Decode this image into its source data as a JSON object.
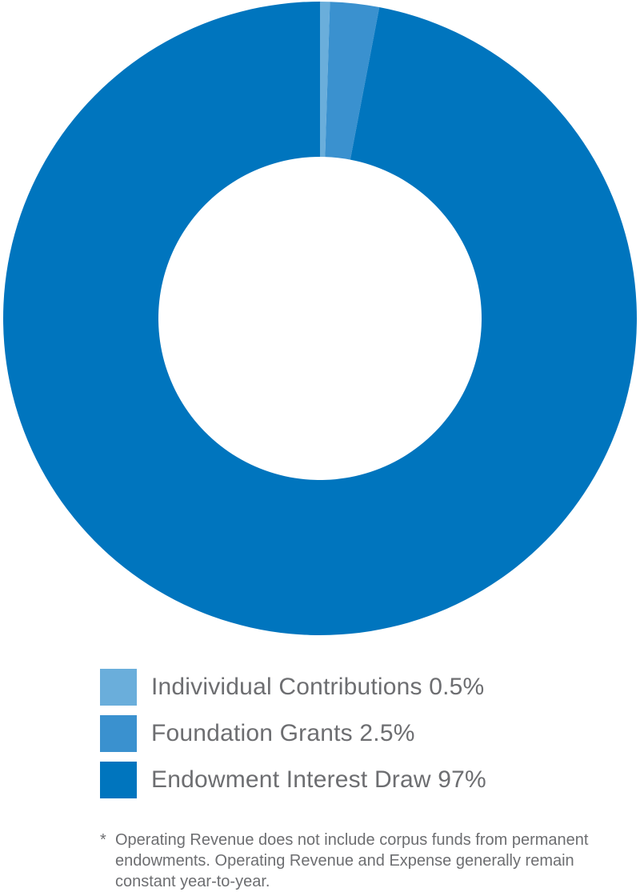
{
  "chart_data": {
    "type": "pie",
    "donut": true,
    "title": "",
    "slices": [
      {
        "label": "Indivividual Contributions 0.5%",
        "value": 0.5,
        "color": "#6aaedb"
      },
      {
        "label": "Foundation Grants 2.5%",
        "value": 2.5,
        "color": "#3a91cf"
      },
      {
        "label": "Endowment Interest Draw 97%",
        "value": 97,
        "color": "#0075be"
      }
    ],
    "legend_position": "bottom"
  },
  "footnote": {
    "marker": "*",
    "text": "Operating Revenue does not include corpus funds from permanent endowments. Operating Revenue and Expense generally remain constant year-to-year."
  }
}
